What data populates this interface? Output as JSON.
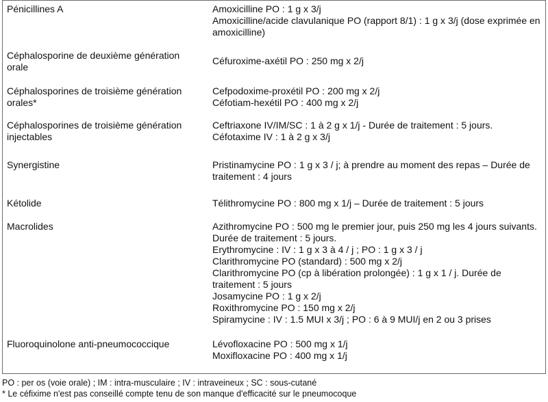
{
  "rows": [
    {
      "class": "Pénicillines A",
      "drugs": [
        "Amoxicilline PO : 1 g x 3/j",
        "Amoxicilline/acide clavulanique PO (rapport 8/1) : 1 g x 3/j (dose exprimée en amoxicilline)"
      ]
    },
    {
      "class": "Céphalosporine de deuxième génération orale",
      "drugs": [
        "Céfuroxime-axétil PO : 250 mg x 2/j"
      ]
    },
    {
      "class": "Céphalosporines de troisième génération orales*",
      "drugs": [
        "Cefpodoxime-proxétil PO : 200 mg x 2/j",
        "Céfotiam-hexétil PO : 400 mg x 2/j"
      ]
    },
    {
      "class": "Céphalosporines de troisième génération injectables",
      "drugs": [
        "Ceftriaxone IV/IM/SC : 1 à 2 g x 1/j - Durée de traitement : 5 jours.",
        "Céfotaxime IV : 1 à 2 g x 3/j"
      ]
    },
    {
      "class": "Synergistine",
      "drugs": [
        "Pristinamycine PO : 1 g x 3 / j; à prendre au moment des repas – Durée de traitement : 4 jours"
      ]
    },
    {
      "class": "Kétolide",
      "drugs": [
        "Télithromycine PO : 800 mg x 1/j – Durée de traitement : 5 jours"
      ]
    },
    {
      "class": "Macrolides",
      "drugs": [
        "Azithromycine PO : 500 mg le premier jour, puis 250 mg les 4 jours suivants. Durée de traitement : 5 jours.",
        "Erythromycine : IV : 1 g x 3 à 4 / j ;  PO : 1 g x 3 / j",
        "Clarithromycine PO (standard) : 500 mg x 2/j",
        "Clarithromycine PO (cp à libération prolongée) : 1 g x 1 / j. Durée de traitement : 5 jours",
        "Josamycine PO : 1 g x 2/j",
        "Roxithromycine PO : 150 mg x 2/j",
        "Spiramycine : IV : 1.5 MUI x 3/j ; PO : 6 à 9 MUI/j en 2 ou 3 prises"
      ]
    },
    {
      "class": "Fluoroquinolone anti-pneumococcique",
      "drugs": [
        "Lévofloxacine PO : 500 mg x 1/j",
        "Moxifloxacine PO : 400 mg  x 1/j"
      ]
    }
  ],
  "footnotes": [
    "PO : per os (voie orale) ; IM : intra-musculaire ; IV : intraveineux ; SC : sous-cutané",
    "* Le céfixime n'est pas conseillé compte tenu de son manque d'efficacité sur le pneumocoque"
  ]
}
